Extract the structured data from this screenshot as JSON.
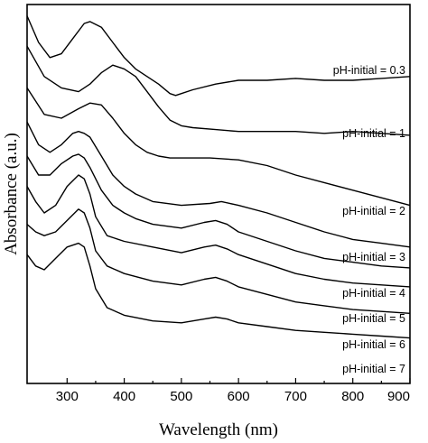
{
  "chart_data": {
    "type": "line",
    "title": "",
    "xlabel": "Wavelength (nm)",
    "ylabel": "Absorbance (a.u.)",
    "xlim": [
      230,
      900
    ],
    "xticks": [
      300,
      400,
      500,
      600,
      700,
      800,
      900
    ],
    "xtick_labels": [
      "300",
      "400",
      "500",
      "600",
      "700",
      "800",
      "900"
    ],
    "y_units": "arbitrary (curves vertically offset, stacked)",
    "yticks_shown": false,
    "series": [
      {
        "name": "pH-initial = 0.3",
        "x": [
          230,
          250,
          270,
          290,
          310,
          330,
          340,
          360,
          380,
          400,
          420,
          440,
          460,
          480,
          490,
          500,
          520,
          560,
          600,
          650,
          700,
          750,
          800,
          850,
          900
        ],
        "y": [
          0.97,
          0.9,
          0.86,
          0.87,
          0.91,
          0.95,
          0.955,
          0.94,
          0.9,
          0.86,
          0.83,
          0.81,
          0.79,
          0.765,
          0.76,
          0.765,
          0.775,
          0.79,
          0.8,
          0.8,
          0.805,
          0.8,
          0.8,
          0.805,
          0.81
        ]
      },
      {
        "name": "pH-initial = 1",
        "x": [
          230,
          260,
          290,
          320,
          340,
          360,
          380,
          400,
          420,
          440,
          460,
          480,
          500,
          520,
          560,
          600,
          650,
          700,
          750,
          800,
          850,
          900
        ],
        "y": [
          0.89,
          0.81,
          0.78,
          0.77,
          0.79,
          0.82,
          0.84,
          0.83,
          0.81,
          0.77,
          0.73,
          0.695,
          0.68,
          0.675,
          0.67,
          0.665,
          0.665,
          0.665,
          0.66,
          0.665,
          0.66,
          0.655
        ]
      },
      {
        "name": "pH-initial = 2",
        "x": [
          230,
          260,
          290,
          320,
          340,
          360,
          380,
          400,
          420,
          440,
          460,
          480,
          500,
          550,
          600,
          650,
          700,
          750,
          800,
          850,
          900
        ],
        "y": [
          0.78,
          0.71,
          0.7,
          0.725,
          0.74,
          0.735,
          0.7,
          0.66,
          0.63,
          0.61,
          0.6,
          0.595,
          0.595,
          0.595,
          0.59,
          0.575,
          0.55,
          0.53,
          0.51,
          0.49,
          0.47
        ]
      },
      {
        "name": "pH-initial = 3",
        "x": [
          230,
          250,
          270,
          290,
          310,
          320,
          330,
          340,
          360,
          380,
          400,
          420,
          450,
          500,
          550,
          570,
          600,
          650,
          700,
          750,
          800,
          850,
          900
        ],
        "y": [
          0.69,
          0.63,
          0.61,
          0.63,
          0.66,
          0.665,
          0.66,
          0.65,
          0.6,
          0.55,
          0.52,
          0.5,
          0.48,
          0.47,
          0.475,
          0.48,
          0.47,
          0.45,
          0.425,
          0.4,
          0.38,
          0.37,
          0.36
        ]
      },
      {
        "name": "pH-initial = 4",
        "x": [
          230,
          250,
          270,
          290,
          310,
          320,
          330,
          340,
          360,
          380,
          400,
          420,
          450,
          500,
          540,
          560,
          580,
          600,
          650,
          700,
          750,
          800,
          850,
          900
        ],
        "y": [
          0.6,
          0.55,
          0.55,
          0.58,
          0.6,
          0.605,
          0.595,
          0.57,
          0.51,
          0.47,
          0.45,
          0.435,
          0.42,
          0.41,
          0.425,
          0.43,
          0.42,
          0.4,
          0.375,
          0.35,
          0.33,
          0.32,
          0.31,
          0.305
        ]
      },
      {
        "name": "pH-initial = 5",
        "x": [
          230,
          245,
          260,
          280,
          300,
          320,
          330,
          340,
          350,
          370,
          400,
          450,
          500,
          540,
          560,
          580,
          600,
          650,
          700,
          750,
          800,
          850,
          900
        ],
        "y": [
          0.52,
          0.48,
          0.45,
          0.47,
          0.52,
          0.55,
          0.54,
          0.5,
          0.44,
          0.39,
          0.375,
          0.36,
          0.345,
          0.36,
          0.365,
          0.355,
          0.34,
          0.315,
          0.29,
          0.275,
          0.265,
          0.26,
          0.255
        ]
      },
      {
        "name": "pH-initial = 6",
        "x": [
          230,
          245,
          260,
          280,
          300,
          320,
          330,
          340,
          350,
          370,
          400,
          450,
          500,
          540,
          560,
          580,
          600,
          650,
          700,
          750,
          800,
          850,
          900
        ],
        "y": [
          0.42,
          0.4,
          0.39,
          0.4,
          0.43,
          0.46,
          0.45,
          0.41,
          0.35,
          0.31,
          0.29,
          0.27,
          0.26,
          0.275,
          0.28,
          0.27,
          0.255,
          0.235,
          0.215,
          0.205,
          0.195,
          0.19,
          0.185
        ]
      },
      {
        "name": "pH-initial = 7",
        "x": [
          230,
          245,
          260,
          280,
          300,
          320,
          330,
          340,
          350,
          370,
          400,
          450,
          500,
          540,
          560,
          580,
          600,
          650,
          700,
          750,
          800,
          850,
          900
        ],
        "y": [
          0.34,
          0.31,
          0.3,
          0.33,
          0.36,
          0.37,
          0.36,
          0.31,
          0.25,
          0.2,
          0.18,
          0.165,
          0.16,
          0.17,
          0.175,
          0.17,
          0.16,
          0.15,
          0.14,
          0.135,
          0.13,
          0.125,
          0.12
        ]
      }
    ],
    "series_label_placement": "right end of each curve",
    "legend": "none",
    "grid": false
  }
}
